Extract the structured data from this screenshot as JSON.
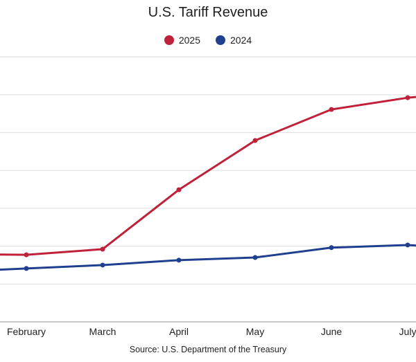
{
  "chart_data": {
    "type": "line",
    "title": "U.S. Tariff Revenue",
    "source": "Source: U.S. Department of the Treasury",
    "xlabel": "",
    "ylabel": "",
    "y_units_note": "Y-axis tick labels are cropped out of view; values are expressed in gridline units (baseline = 0, each horizontal gridline = 1).",
    "ylim": [
      0,
      7
    ],
    "grid": true,
    "legend_position": "top-center",
    "categories": [
      "February",
      "March",
      "April",
      "May",
      "June",
      "July"
    ],
    "series": [
      {
        "name": "2025",
        "color": "#c0213a",
        "values": [
          1.77,
          1.92,
          3.49,
          4.79,
          5.61,
          5.92
        ],
        "offscreen_left": 1.79,
        "offscreen_right": 6.1
      },
      {
        "name": "2024",
        "color": "#1f3f8f",
        "values": [
          1.41,
          1.5,
          1.63,
          1.7,
          1.96,
          2.03
        ],
        "offscreen_left": 1.32,
        "offscreen_right": 1.9
      }
    ]
  }
}
